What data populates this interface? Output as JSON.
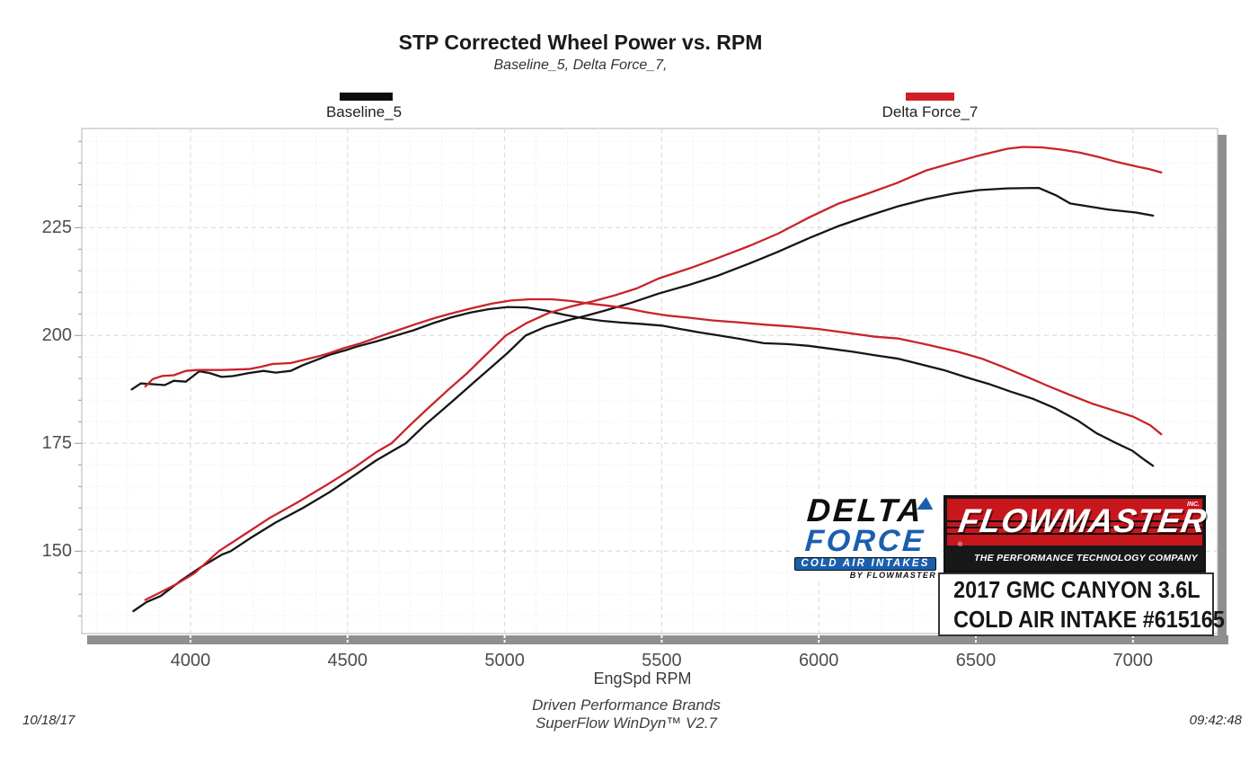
{
  "chart_data": {
    "type": "line",
    "title": "STP Corrected Wheel Power vs. RPM",
    "subtitle": "Baseline_5, Delta Force_7,",
    "x_label": "EngSpd  RPM",
    "x_ticks": [
      4000,
      4500,
      5000,
      5500,
      6000,
      6500,
      7000
    ],
    "y_ticks": [
      150,
      175,
      200,
      225
    ],
    "x_range": [
      3654,
      7270
    ],
    "y_range": [
      131,
      248
    ],
    "grid": "major dashed gray every 500 rpm / 25 units, minor dotted every 100 rpm / 5 units",
    "legend_position": "top, above plot",
    "series": [
      {
        "name": "Baseline_5",
        "role": "torque-shaped curve (black)",
        "color": "#161616",
        "points": [
          [
            3813,
            187.5
          ],
          [
            3842,
            188.9
          ],
          [
            3880,
            188.7
          ],
          [
            3918,
            188.5
          ],
          [
            3947,
            189.5
          ],
          [
            3985,
            189.3
          ],
          [
            4028,
            191.7
          ],
          [
            4061,
            191.3
          ],
          [
            4099,
            190.4
          ],
          [
            4137,
            190.6
          ],
          [
            4185,
            191.3
          ],
          [
            4233,
            191.8
          ],
          [
            4271,
            191.4
          ],
          [
            4319,
            191.8
          ],
          [
            4357,
            193.1
          ],
          [
            4404,
            194.4
          ],
          [
            4442,
            195.5
          ],
          [
            4490,
            196.5
          ],
          [
            4528,
            197.4
          ],
          [
            4590,
            198.6
          ],
          [
            4650,
            199.9
          ],
          [
            4710,
            201.2
          ],
          [
            4770,
            202.8
          ],
          [
            4830,
            204.2
          ],
          [
            4890,
            205.3
          ],
          [
            4950,
            206.1
          ],
          [
            5010,
            206.6
          ],
          [
            5070,
            206.5
          ],
          [
            5130,
            205.8
          ],
          [
            5190,
            204.8
          ],
          [
            5250,
            204.0
          ],
          [
            5310,
            203.4
          ],
          [
            5370,
            203.0
          ],
          [
            5430,
            202.7
          ],
          [
            5500,
            202.3
          ],
          [
            5560,
            201.5
          ],
          [
            5620,
            200.7
          ],
          [
            5682,
            200.0
          ],
          [
            5750,
            199.2
          ],
          [
            5825,
            198.2
          ],
          [
            5900,
            198.0
          ],
          [
            5968,
            197.6
          ],
          [
            6040,
            196.9
          ],
          [
            6111,
            196.2
          ],
          [
            6180,
            195.4
          ],
          [
            6254,
            194.6
          ],
          [
            6320,
            193.4
          ],
          [
            6397,
            192.0
          ],
          [
            6470,
            190.3
          ],
          [
            6540,
            188.8
          ],
          [
            6610,
            187.0
          ],
          [
            6683,
            185.3
          ],
          [
            6750,
            183.2
          ],
          [
            6826,
            180.2
          ],
          [
            6883,
            177.4
          ],
          [
            6940,
            175.3
          ],
          [
            6998,
            173.3
          ],
          [
            7036,
            171.2
          ],
          [
            7064,
            169.8
          ]
        ]
      },
      {
        "name": "Baseline_5",
        "role": "power curve (black)",
        "color": "#161616",
        "points": [
          [
            3818,
            136.1
          ],
          [
            3860,
            138.2
          ],
          [
            3905,
            139.6
          ],
          [
            3970,
            143.2
          ],
          [
            4035,
            146.4
          ],
          [
            4100,
            149.2
          ],
          [
            4128,
            150.0
          ],
          [
            4190,
            153.0
          ],
          [
            4270,
            156.6
          ],
          [
            4360,
            160.1
          ],
          [
            4445,
            163.8
          ],
          [
            4530,
            168.0
          ],
          [
            4590,
            171.0
          ],
          [
            4685,
            175.0
          ],
          [
            4750,
            179.5
          ],
          [
            4800,
            182.6
          ],
          [
            4850,
            185.8
          ],
          [
            4900,
            189.0
          ],
          [
            4960,
            192.8
          ],
          [
            5010,
            196.0
          ],
          [
            5067,
            200.0
          ],
          [
            5130,
            202.0
          ],
          [
            5200,
            203.5
          ],
          [
            5260,
            204.6
          ],
          [
            5320,
            205.8
          ],
          [
            5400,
            207.5
          ],
          [
            5490,
            209.7
          ],
          [
            5590,
            211.8
          ],
          [
            5680,
            213.9
          ],
          [
            5780,
            216.7
          ],
          [
            5870,
            219.4
          ],
          [
            5970,
            222.6
          ],
          [
            6060,
            225.3
          ],
          [
            6160,
            227.8
          ],
          [
            6250,
            229.9
          ],
          [
            6340,
            231.6
          ],
          [
            6430,
            232.9
          ],
          [
            6510,
            233.7
          ],
          [
            6600,
            234.1
          ],
          [
            6700,
            234.2
          ],
          [
            6755,
            232.5
          ],
          [
            6800,
            230.6
          ],
          [
            6860,
            229.9
          ],
          [
            6920,
            229.2
          ],
          [
            7010,
            228.5
          ],
          [
            7064,
            227.8
          ]
        ]
      },
      {
        "name": "Delta Force_7",
        "role": "torque-shaped curve (red)",
        "color": "#c9232a",
        "points": [
          [
            3856,
            188.2
          ],
          [
            3880,
            189.9
          ],
          [
            3910,
            190.6
          ],
          [
            3947,
            190.8
          ],
          [
            3985,
            191.8
          ],
          [
            4023,
            192.0
          ],
          [
            4099,
            192.0
          ],
          [
            4185,
            192.2
          ],
          [
            4223,
            192.7
          ],
          [
            4261,
            193.4
          ],
          [
            4319,
            193.6
          ],
          [
            4357,
            194.3
          ],
          [
            4404,
            195.1
          ],
          [
            4442,
            195.9
          ],
          [
            4490,
            197.1
          ],
          [
            4538,
            198.1
          ],
          [
            4600,
            199.7
          ],
          [
            4660,
            201.2
          ],
          [
            4720,
            202.7
          ],
          [
            4780,
            204.1
          ],
          [
            4840,
            205.3
          ],
          [
            4900,
            206.4
          ],
          [
            4960,
            207.4
          ],
          [
            5020,
            208.1
          ],
          [
            5080,
            208.4
          ],
          [
            5150,
            208.4
          ],
          [
            5210,
            208.0
          ],
          [
            5270,
            207.4
          ],
          [
            5330,
            206.9
          ],
          [
            5390,
            206.3
          ],
          [
            5450,
            205.4
          ],
          [
            5520,
            204.6
          ],
          [
            5590,
            204.1
          ],
          [
            5660,
            203.5
          ],
          [
            5750,
            203.0
          ],
          [
            5830,
            202.5
          ],
          [
            5910,
            202.1
          ],
          [
            6000,
            201.5
          ],
          [
            6090,
            200.6
          ],
          [
            6180,
            199.7
          ],
          [
            6254,
            199.3
          ],
          [
            6350,
            197.8
          ],
          [
            6444,
            196.2
          ],
          [
            6520,
            194.6
          ],
          [
            6587,
            192.7
          ],
          [
            6660,
            190.5
          ],
          [
            6730,
            188.3
          ],
          [
            6800,
            186.2
          ],
          [
            6870,
            184.2
          ],
          [
            6940,
            182.6
          ],
          [
            7000,
            181.2
          ],
          [
            7055,
            179.2
          ],
          [
            7090,
            177.1
          ]
        ]
      },
      {
        "name": "Delta Force_7",
        "role": "power curve (red)",
        "color": "#c9232a",
        "points": [
          [
            3856,
            138.7
          ],
          [
            3900,
            140.3
          ],
          [
            3956,
            142.4
          ],
          [
            4013,
            144.9
          ],
          [
            4090,
            150.0
          ],
          [
            4170,
            153.8
          ],
          [
            4250,
            157.6
          ],
          [
            4340,
            161.3
          ],
          [
            4430,
            165.2
          ],
          [
            4520,
            169.3
          ],
          [
            4590,
            172.9
          ],
          [
            4640,
            175.0
          ],
          [
            4700,
            179.3
          ],
          [
            4760,
            183.4
          ],
          [
            4820,
            187.4
          ],
          [
            4880,
            191.2
          ],
          [
            4940,
            195.5
          ],
          [
            5004,
            200.0
          ],
          [
            5070,
            202.9
          ],
          [
            5140,
            205.2
          ],
          [
            5210,
            206.7
          ],
          [
            5280,
            207.9
          ],
          [
            5350,
            209.3
          ],
          [
            5420,
            210.9
          ],
          [
            5490,
            213.2
          ],
          [
            5590,
            215.6
          ],
          [
            5680,
            218.0
          ],
          [
            5780,
            220.8
          ],
          [
            5870,
            223.6
          ],
          [
            5970,
            227.4
          ],
          [
            6060,
            230.5
          ],
          [
            6160,
            233.0
          ],
          [
            6250,
            235.4
          ],
          [
            6340,
            238.2
          ],
          [
            6430,
            240.1
          ],
          [
            6520,
            241.9
          ],
          [
            6600,
            243.3
          ],
          [
            6650,
            243.7
          ],
          [
            6710,
            243.6
          ],
          [
            6770,
            243.1
          ],
          [
            6830,
            242.4
          ],
          [
            6890,
            241.4
          ],
          [
            6950,
            240.2
          ],
          [
            7010,
            239.2
          ],
          [
            7050,
            238.6
          ],
          [
            7090,
            237.8
          ]
        ]
      }
    ]
  },
  "legend": {
    "items": [
      {
        "label": "Baseline_5",
        "color": "#0d0d0d"
      },
      {
        "label": "Delta Force_7",
        "color": "#d01f25"
      }
    ]
  },
  "footer": {
    "brand_line": "Driven Performance Brands",
    "software_line": "SuperFlow WinDyn™ V2.7",
    "date": "10/18/17",
    "time": "09:42:48"
  },
  "logos": {
    "delta_force": {
      "word1": "DELTA",
      "word2": "FORCE",
      "banner": "COLD AIR INTAKES",
      "byline": "BY FLOWMASTER",
      "blue": "#1a5fae"
    },
    "flowmaster": {
      "name": "FLOWMASTER",
      "inc": "INC.",
      "registered": "®",
      "tagline": "THE PERFORMANCE TECHNOLOGY COMPANY",
      "red": "#c8161d"
    },
    "vehicle": {
      "line1": "2017 GMC CANYON 3.6L",
      "line2": "COLD AIR INTAKE #615165"
    }
  }
}
